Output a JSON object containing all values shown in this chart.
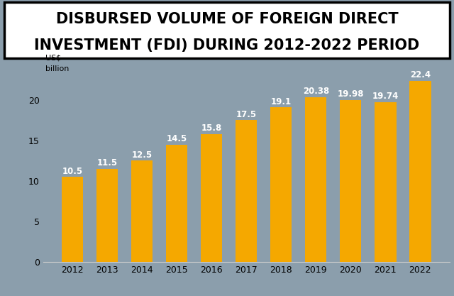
{
  "title_line1": "DISBURSED VOLUME OF FOREIGN DIRECT",
  "title_line2": "INVESTMENT (FDI) DURING 2012-2022 PERIOD",
  "ylabel_line1": "US$",
  "ylabel_line2": "billion",
  "years": [
    2012,
    2013,
    2014,
    2015,
    2016,
    2017,
    2018,
    2019,
    2020,
    2021,
    2022
  ],
  "values": [
    10.5,
    11.5,
    12.5,
    14.5,
    15.8,
    17.5,
    19.1,
    20.38,
    19.98,
    19.74,
    22.4
  ],
  "labels": [
    "10.5",
    "11.5",
    "12.5",
    "14.5",
    "15.8",
    "17.5",
    "19.1",
    "20.38",
    "19.98",
    "19.74",
    "22.4"
  ],
  "bar_color": "#F5A800",
  "bg_color": "#8B9EAC",
  "title_bg": "#FFFFFF",
  "yticks": [
    0,
    5,
    10,
    15,
    20
  ],
  "ylim": [
    0,
    24.5
  ],
  "title_fontsize": 15,
  "label_fontsize": 8.5,
  "tick_fontsize": 9,
  "ylabel_fontsize": 8
}
